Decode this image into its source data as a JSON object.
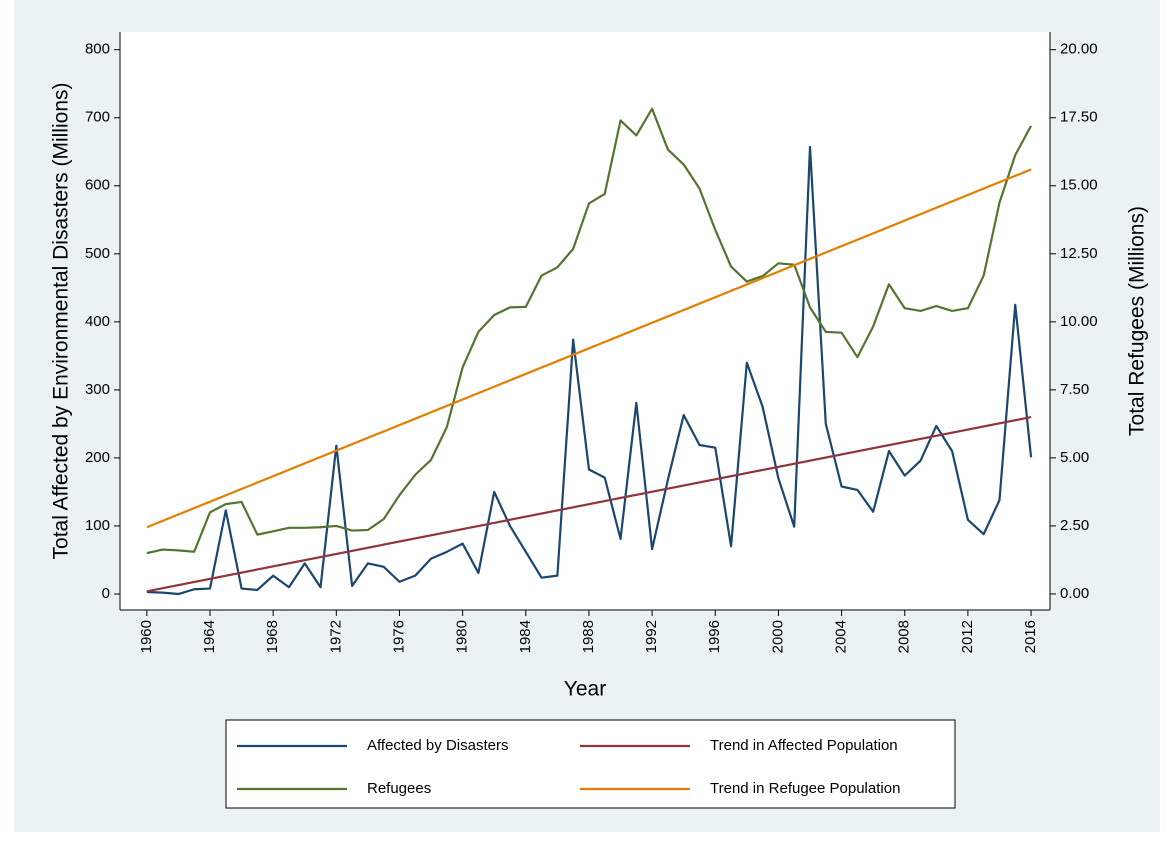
{
  "chart_data": {
    "type": "line",
    "x_label": "Year",
    "y_label": "Total Affected by Environmental Disasters (Millions)",
    "y2_label": "Total Refugees (Millions)",
    "x": [
      1960,
      1961,
      1962,
      1963,
      1964,
      1965,
      1966,
      1967,
      1968,
      1969,
      1970,
      1971,
      1972,
      1973,
      1974,
      1975,
      1976,
      1977,
      1978,
      1979,
      1980,
      1981,
      1982,
      1983,
      1984,
      1985,
      1986,
      1987,
      1988,
      1989,
      1990,
      1991,
      1992,
      1993,
      1994,
      1995,
      1996,
      1997,
      1998,
      1999,
      2000,
      2001,
      2002,
      2003,
      2004,
      2005,
      2006,
      2007,
      2008,
      2009,
      2010,
      2011,
      2012,
      2013,
      2014,
      2015,
      2016
    ],
    "series": [
      {
        "name": "Affected by Disasters",
        "color": "#1a476f",
        "axis": "y",
        "values": [
          3,
          2,
          0,
          7,
          8,
          123,
          8,
          6,
          27,
          10,
          45,
          10,
          218,
          12,
          45,
          40,
          18,
          27,
          52,
          62,
          74,
          31,
          150,
          100,
          62,
          24,
          27,
          374,
          183,
          171,
          81,
          281,
          66,
          168,
          263,
          219,
          215,
          70,
          340,
          275,
          170,
          99,
          657,
          250,
          158,
          153,
          121,
          210,
          174,
          196,
          247,
          210,
          109,
          88,
          138,
          425,
          201
        ]
      },
      {
        "name": "Refugees",
        "color": "#55752f",
        "axis": "y2",
        "values": [
          1.5,
          1.63,
          1.6,
          1.55,
          3.0,
          3.3,
          3.38,
          2.18,
          2.3,
          2.43,
          2.43,
          2.45,
          2.5,
          2.33,
          2.35,
          2.75,
          3.63,
          4.38,
          4.93,
          6.13,
          8.33,
          9.63,
          10.25,
          10.53,
          10.55,
          11.7,
          12.0,
          12.68,
          14.35,
          14.7,
          17.4,
          16.85,
          17.83,
          16.33,
          15.78,
          14.9,
          13.38,
          12.03,
          11.48,
          11.68,
          12.15,
          12.1,
          10.53,
          9.63,
          9.6,
          8.7,
          9.83,
          11.38,
          10.5,
          10.4,
          10.58,
          10.4,
          10.5,
          11.7,
          14.38,
          16.13,
          17.2
        ]
      },
      {
        "name": "Trend in Affected Population",
        "color": "#90353b",
        "axis": "y",
        "x": [
          1960,
          2016
        ],
        "values": [
          4,
          260
        ]
      },
      {
        "name": "Trend in Refugee Population",
        "color": "#e37e00",
        "axis": "y2",
        "x": [
          1960,
          2016
        ],
        "values": [
          2.45,
          15.6
        ]
      }
    ],
    "xlim": [
      1958.3,
      2017.2
    ],
    "xticks": [
      1960,
      1964,
      1968,
      1972,
      1976,
      1980,
      1984,
      1988,
      1992,
      1996,
      2000,
      2004,
      2008,
      2012,
      2016
    ],
    "ylim": [
      -23.5,
      826
    ],
    "yticks": [
      0,
      100,
      200,
      300,
      400,
      500,
      600,
      700,
      800
    ],
    "y2lim": [
      -0.59,
      20.65
    ],
    "y2ticks": [
      {
        "value": 0,
        "label": "0.00"
      },
      {
        "value": 2.5,
        "label": "2.50"
      },
      {
        "value": 5,
        "label": "5.00"
      },
      {
        "value": 7.5,
        "label": "7.50"
      },
      {
        "value": 10,
        "label": "10.00"
      },
      {
        "value": 12.5,
        "label": "12.50"
      },
      {
        "value": 15,
        "label": "15.00"
      },
      {
        "value": 17.5,
        "label": "17.50"
      },
      {
        "value": 20,
        "label": "20.00"
      }
    ],
    "grid": false
  }
}
